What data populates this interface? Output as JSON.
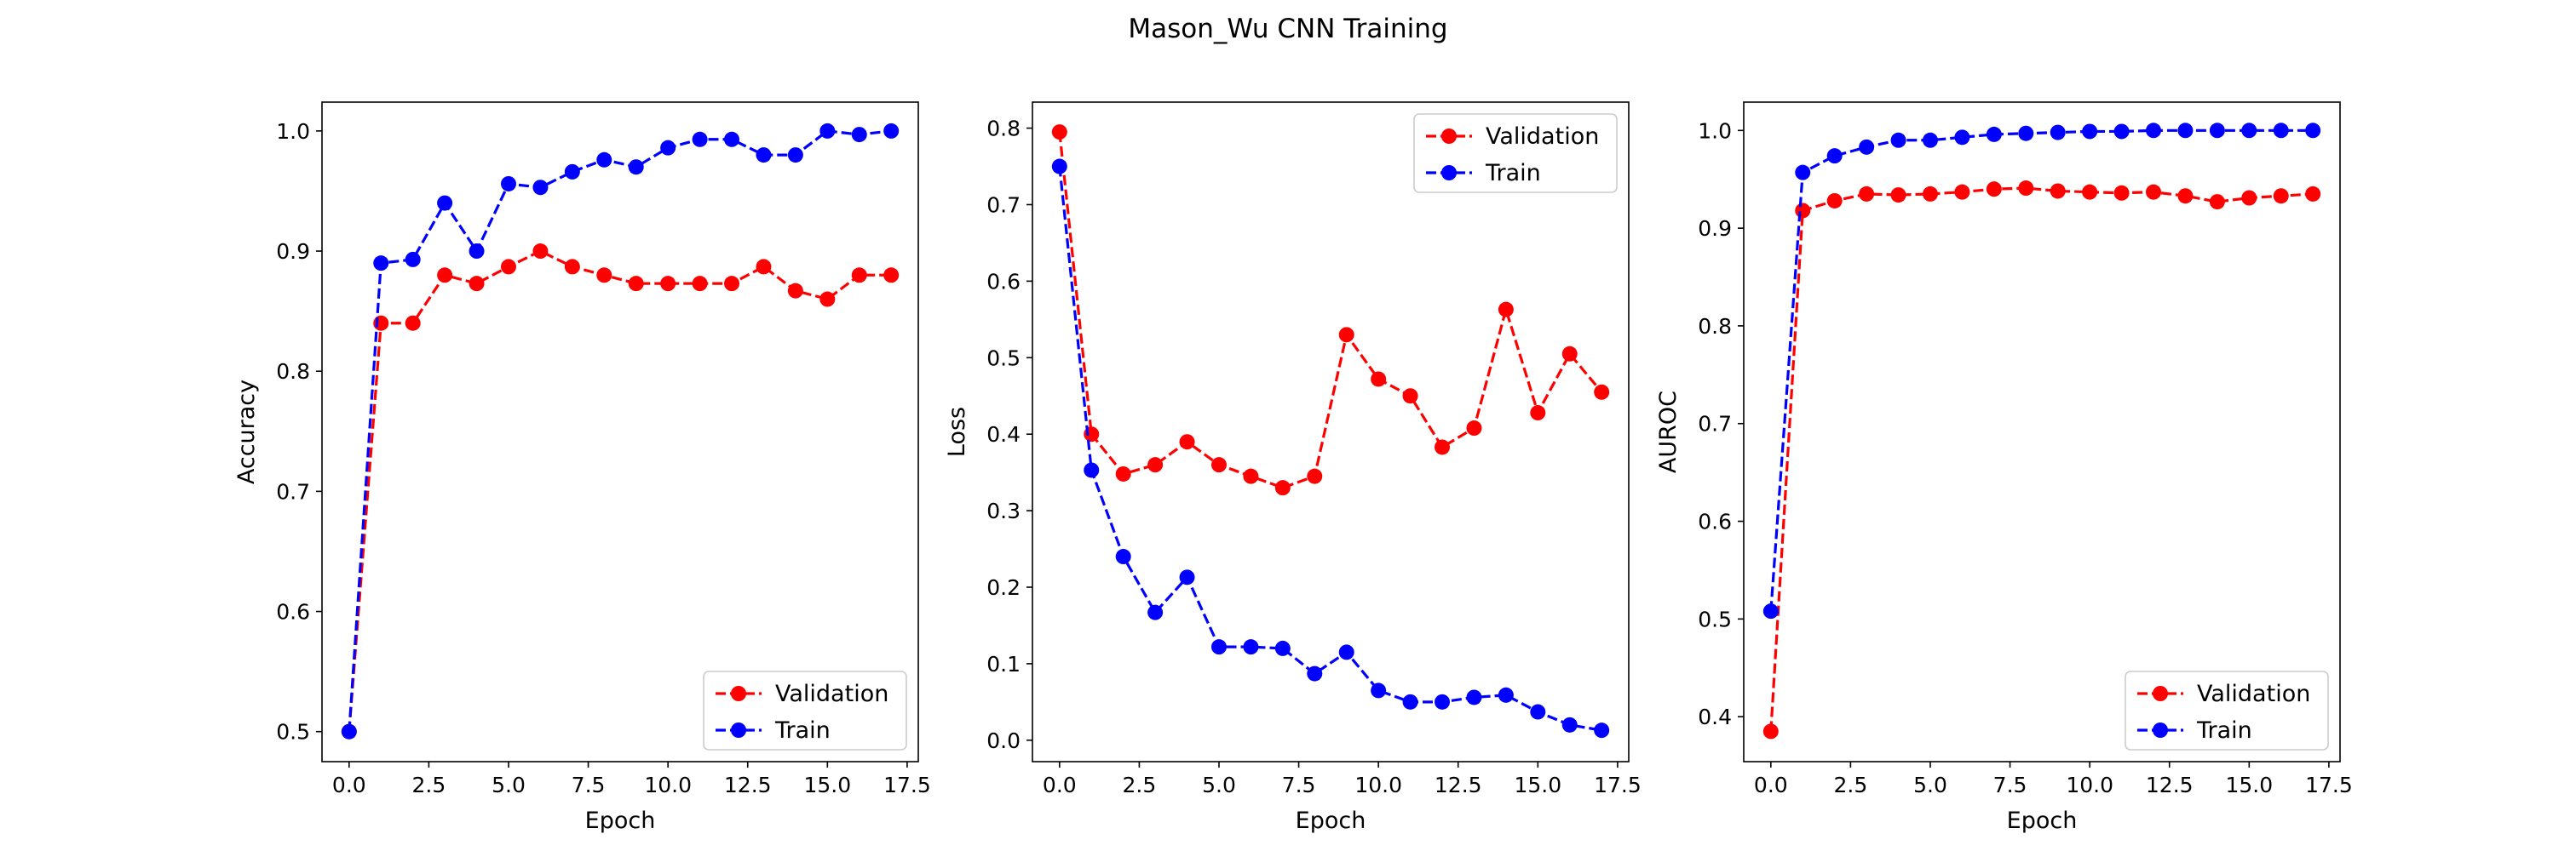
{
  "figure": {
    "title": "Mason_Wu CNN Training"
  },
  "colors": {
    "validation": "#ff0000",
    "train": "#0000ff"
  },
  "chart_data": [
    {
      "type": "line",
      "xlabel": "Epoch",
      "ylabel": "Accuracy",
      "xlim": [
        -0.85,
        17.85
      ],
      "ylim": [
        0.475,
        1.024
      ],
      "xticks": [
        0.0,
        2.5,
        5.0,
        7.5,
        10.0,
        12.5,
        15.0,
        17.5
      ],
      "xtick_labels": [
        "0.0",
        "2.5",
        "5.0",
        "7.5",
        "10.0",
        "12.5",
        "15.0",
        "17.5"
      ],
      "yticks": [
        0.5,
        0.6,
        0.7,
        0.8,
        0.9,
        1.0
      ],
      "ytick_labels": [
        "0.5",
        "0.6",
        "0.7",
        "0.8",
        "0.9",
        "1.0"
      ],
      "legend": {
        "placement": "lower-right"
      },
      "x": [
        0,
        1,
        2,
        3,
        4,
        5,
        6,
        7,
        8,
        9,
        10,
        11,
        12,
        13,
        14,
        15,
        16,
        17
      ],
      "series": [
        {
          "name": "Validation",
          "color": "#ff0000",
          "values": [
            0.5,
            0.84,
            0.84,
            0.88,
            0.873,
            0.887,
            0.9,
            0.887,
            0.88,
            0.873,
            0.873,
            0.873,
            0.873,
            0.887,
            0.867,
            0.86,
            0.88,
            0.88
          ]
        },
        {
          "name": "Train",
          "color": "#0000ff",
          "values": [
            0.5,
            0.89,
            0.893,
            0.94,
            0.9,
            0.956,
            0.953,
            0.966,
            0.976,
            0.97,
            0.986,
            0.993,
            0.993,
            0.98,
            0.98,
            1.0,
            0.997,
            1.0
          ]
        }
      ]
    },
    {
      "type": "line",
      "xlabel": "Epoch",
      "ylabel": "Loss",
      "xlim": [
        -0.85,
        17.85
      ],
      "ylim": [
        -0.028,
        0.834
      ],
      "xticks": [
        0.0,
        2.5,
        5.0,
        7.5,
        10.0,
        12.5,
        15.0,
        17.5
      ],
      "xtick_labels": [
        "0.0",
        "2.5",
        "5.0",
        "7.5",
        "10.0",
        "12.5",
        "15.0",
        "17.5"
      ],
      "yticks": [
        0.0,
        0.1,
        0.2,
        0.3,
        0.4,
        0.5,
        0.6,
        0.7,
        0.8
      ],
      "ytick_labels": [
        "0.0",
        "0.1",
        "0.2",
        "0.3",
        "0.4",
        "0.5",
        "0.6",
        "0.7",
        "0.8"
      ],
      "legend": {
        "placement": "upper-right"
      },
      "x": [
        0,
        1,
        2,
        3,
        4,
        5,
        6,
        7,
        8,
        9,
        10,
        11,
        12,
        13,
        14,
        15,
        16,
        17
      ],
      "series": [
        {
          "name": "Validation",
          "color": "#ff0000",
          "values": [
            0.795,
            0.4,
            0.348,
            0.36,
            0.39,
            0.36,
            0.345,
            0.33,
            0.345,
            0.53,
            0.472,
            0.45,
            0.383,
            0.408,
            0.563,
            0.428,
            0.505,
            0.455
          ]
        },
        {
          "name": "Train",
          "color": "#0000ff",
          "values": [
            0.75,
            0.353,
            0.24,
            0.167,
            0.213,
            0.122,
            0.122,
            0.12,
            0.087,
            0.115,
            0.065,
            0.05,
            0.05,
            0.056,
            0.059,
            0.037,
            0.02,
            0.013
          ]
        }
      ]
    },
    {
      "type": "line",
      "xlabel": "Epoch",
      "ylabel": "AUROC",
      "xlim": [
        -0.85,
        17.85
      ],
      "ylim": [
        0.354,
        1.029
      ],
      "xticks": [
        0.0,
        2.5,
        5.0,
        7.5,
        10.0,
        12.5,
        15.0,
        17.5
      ],
      "xtick_labels": [
        "0.0",
        "2.5",
        "5.0",
        "7.5",
        "10.0",
        "12.5",
        "15.0",
        "17.5"
      ],
      "yticks": [
        0.4,
        0.5,
        0.6,
        0.7,
        0.8,
        0.9,
        1.0
      ],
      "ytick_labels": [
        "0.4",
        "0.5",
        "0.6",
        "0.7",
        "0.8",
        "0.9",
        "1.0"
      ],
      "legend": {
        "placement": "lower-right"
      },
      "x": [
        0,
        1,
        2,
        3,
        4,
        5,
        6,
        7,
        8,
        9,
        10,
        11,
        12,
        13,
        14,
        15,
        16,
        17
      ],
      "series": [
        {
          "name": "Validation",
          "color": "#ff0000",
          "values": [
            0.385,
            0.918,
            0.928,
            0.935,
            0.934,
            0.935,
            0.937,
            0.94,
            0.941,
            0.938,
            0.937,
            0.936,
            0.937,
            0.933,
            0.927,
            0.931,
            0.933,
            0.935
          ]
        },
        {
          "name": "Train",
          "color": "#0000ff",
          "values": [
            0.508,
            0.957,
            0.974,
            0.983,
            0.99,
            0.99,
            0.993,
            0.996,
            0.997,
            0.998,
            0.999,
            0.999,
            1.0,
            1.0,
            1.0,
            1.0,
            1.0,
            1.0
          ]
        }
      ]
    }
  ]
}
